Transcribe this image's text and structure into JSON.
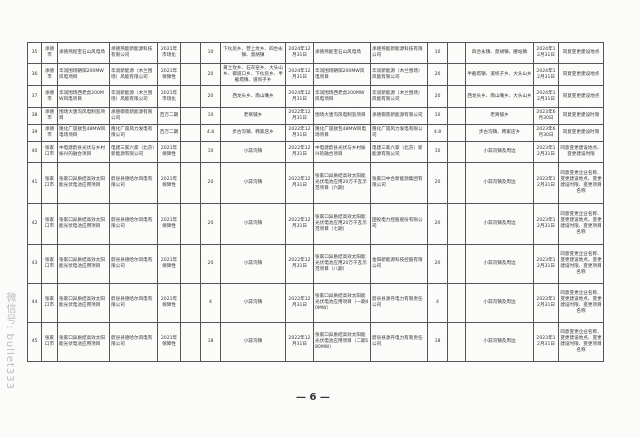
{
  "rows": [
    {
      "no": "35",
      "city": "承德市",
      "project": "承德燕程宝石山风电场",
      "company": "承德燕能新能源科技有限公司",
      "batch": "2021年市场化",
      "cap": "10",
      "location": "下伙房乡、营上坟乡、四合永镇、莫胡镇",
      "date": "2024年12月31日",
      "new_project": "承德燕能宝石山风电场",
      "new_company": "承德燕能新能源科技有限公司",
      "new_cap": "10",
      "new_location": "四合永镇、莫胡镇、腰站镇",
      "new_date": "2024年12月31日",
      "note": "同意变更建设地点"
    },
    {
      "no": "36",
      "city": "承德市",
      "project": "华润围场朝阳200MW风电项目",
      "company": "华润新能源（木兰围场）风能有限公司",
      "batch": "2021年保障性",
      "cap": "20",
      "location": "黄土坎乡、石灰窑乡、大头山乡、御道口乡、下伙房乡、半截塔镇、道坝子乡",
      "date": "2024年12月31日",
      "new_project": "华润围场朝阳200MW风电项目",
      "new_company": "华润新能源（木兰围场）风能有限公司",
      "new_cap": "20",
      "new_location": "半截塔镇、道坝子乡、大头山乡",
      "new_date": "2024年12月31日",
      "note": "同意变更建设地点"
    },
    {
      "no": "37",
      "city": "承德市",
      "project": "华润围场西老虎200MW风电项目",
      "company": "华润新能源（木兰围场）风能有限公司",
      "batch": "2021年市场化",
      "cap": "20",
      "location": "西龙头乡、南山嘴乡",
      "date": "2024年12月31日",
      "new_project": "华润围场西老虎200MW风电项目",
      "new_company": "华润新能源（木兰围场）风能有限公司",
      "new_cap": "20",
      "new_location": "西龙头乡、南山嘴乡、大头山乡",
      "new_date": "2024年12月31日",
      "note": "同意变更建设地点"
    },
    {
      "no": "38",
      "city": "承德市",
      "project": "围场大唐沟风电制氢项目",
      "company": "承德御景新能源有限公司",
      "batch": "百万二期",
      "cap": "10",
      "location": "老窝铺乡",
      "date": "2022年12月31日",
      "new_project": "围场大唐沟风电制氢项目",
      "new_company": "承德御景新能源有限公司",
      "new_cap": "10",
      "new_location": "老窝铺乡",
      "new_date": "2023年6月30日",
      "note": "同意变更建设时限"
    },
    {
      "no": "39",
      "city": "承德市",
      "project": "隆化广晟敖包48MW风电场项目",
      "company": "隆化广晟风力发电有限公司",
      "batch": "百万二期",
      "cap": "4.8",
      "location": "步古沟镇、韩家店乡",
      "date": "2022年12月31日",
      "new_project": "隆化广晟敖包48MW风电场项目",
      "new_company": "隆化广晟风力发电有限公司",
      "new_cap": "4.8",
      "new_location": "步古沟镇、韩家店乡",
      "new_date": "2023年6月30日",
      "note": "同意变更建设时限"
    },
    {
      "no": "40",
      "city": "张家口市",
      "project": "中电建蔚县光伏与乡村振兴的融合项目",
      "company": "电建三家六家（北京）新能源有限公司",
      "batch": "2021年保障性",
      "cap": "10",
      "location": "小蒜沟镇",
      "date": "2022年12月31日",
      "new_project": "中电建蔚县光伏与乡村振兴的融合项目",
      "new_company": "电建三家六家（北京）新能源有限公司",
      "new_cap": "10",
      "new_location": "小蒜沟镇及周边",
      "new_date": "2023年12月31日",
      "note": "同意变更建设地点、变更建设时限"
    },
    {
      "no": "41",
      "city": "张家口市",
      "project": "张家口异质结高效太阳能光伏电池应用项目",
      "company": "蔚县县德哈尔风电有限公司",
      "batch": "2021年保障性",
      "cap": "20",
      "location": "小蒜沟镇",
      "date": "2022年12月31日",
      "new_project": "张家口异质结高效太阳能光伏电池应用20万千瓦示范项目（六期）",
      "new_company": "张家口中合新能源集团有限公司",
      "new_cap": "20",
      "new_location": "小蒜沟镇及周边",
      "new_date": "2023年12月31日",
      "note": "同意变更企业名称、变更建设地点、变更建设时限、变更项目名称"
    },
    {
      "no": "42",
      "city": "张家口市",
      "project": "张家口异质结高效太阳能光伏电池应用项目",
      "company": "蔚县县德哈尔风电有限公司",
      "batch": "2021年保障性",
      "cap": "20",
      "location": "小蒜沟镇",
      "date": "2022年12月31日",
      "new_project": "张家口异质结高效太阳能光伏电池应用20万千瓦示范项目（七期）",
      "new_company": "国投电力控股股份有限公司",
      "new_cap": "20",
      "new_location": "小蒜沟镇及周边",
      "new_date": "2023年12月31日",
      "note": "同意变更企业名称、变更建设地点、变更建设时限、变更项目名称"
    },
    {
      "no": "43",
      "city": "张家口市",
      "project": "张家口异质结高效太阳能光伏电池应用项目",
      "company": "蔚县县德哈尔风电有限公司",
      "batch": "2021年保障性",
      "cap": "20",
      "location": "小蒜沟镇",
      "date": "2022年12月31日",
      "new_project": "张家口异质结高效太阳能光伏电池应用20万千瓦示范项目（八期）",
      "new_company": "金阳新能源科技控股有限公司",
      "new_cap": "20",
      "new_location": "小蒜沟镇及周边",
      "new_date": "2023年12月31日",
      "note": "同意变更企业名称、变更建设地点、变更建设时限、变更项目名称"
    },
    {
      "no": "44",
      "city": "张家口市",
      "project": "张家口异质结高效太阳能光伏电池应用项目",
      "company": "蔚县县德哈尔风电有限公司",
      "batch": "2021年保障性",
      "cap": "4",
      "location": "小蒜沟镇",
      "date": "2022年12月31日",
      "new_project": "张家口异质结高效太阳能光伏电池应用项目（一期40MW）",
      "new_company": "蔚县县源丹电力有限责任公司",
      "new_cap": "4",
      "new_location": "小蒜沟镇及周边",
      "new_date": "2023年12月31日",
      "note": "同意变更企业名称、变更建设地点、变更建设时限、变更项目名称"
    },
    {
      "no": "45",
      "city": "张家口市",
      "project": "张家口异质结高效太阳能光伏电池应用项目",
      "company": "蔚县县德哈尔风电有限公司",
      "batch": "2021年保障性",
      "cap": "18",
      "location": "小蒜沟镇",
      "date": "2022年12月31日",
      "new_project": "张家口异质结高效太阳能光伏电池应用项目（二期180MW）",
      "new_company": "蔚县县源丹电力有限责任公司",
      "new_cap": "18",
      "new_location": "小蒜沟镇及周边",
      "new_date": "2023年12月31日",
      "note": "同意变更企业名称、变更建设地点、变更建设时限、变更项目名称"
    }
  ],
  "page_number": "— 6 —",
  "watermark": "微信号: bullet333"
}
